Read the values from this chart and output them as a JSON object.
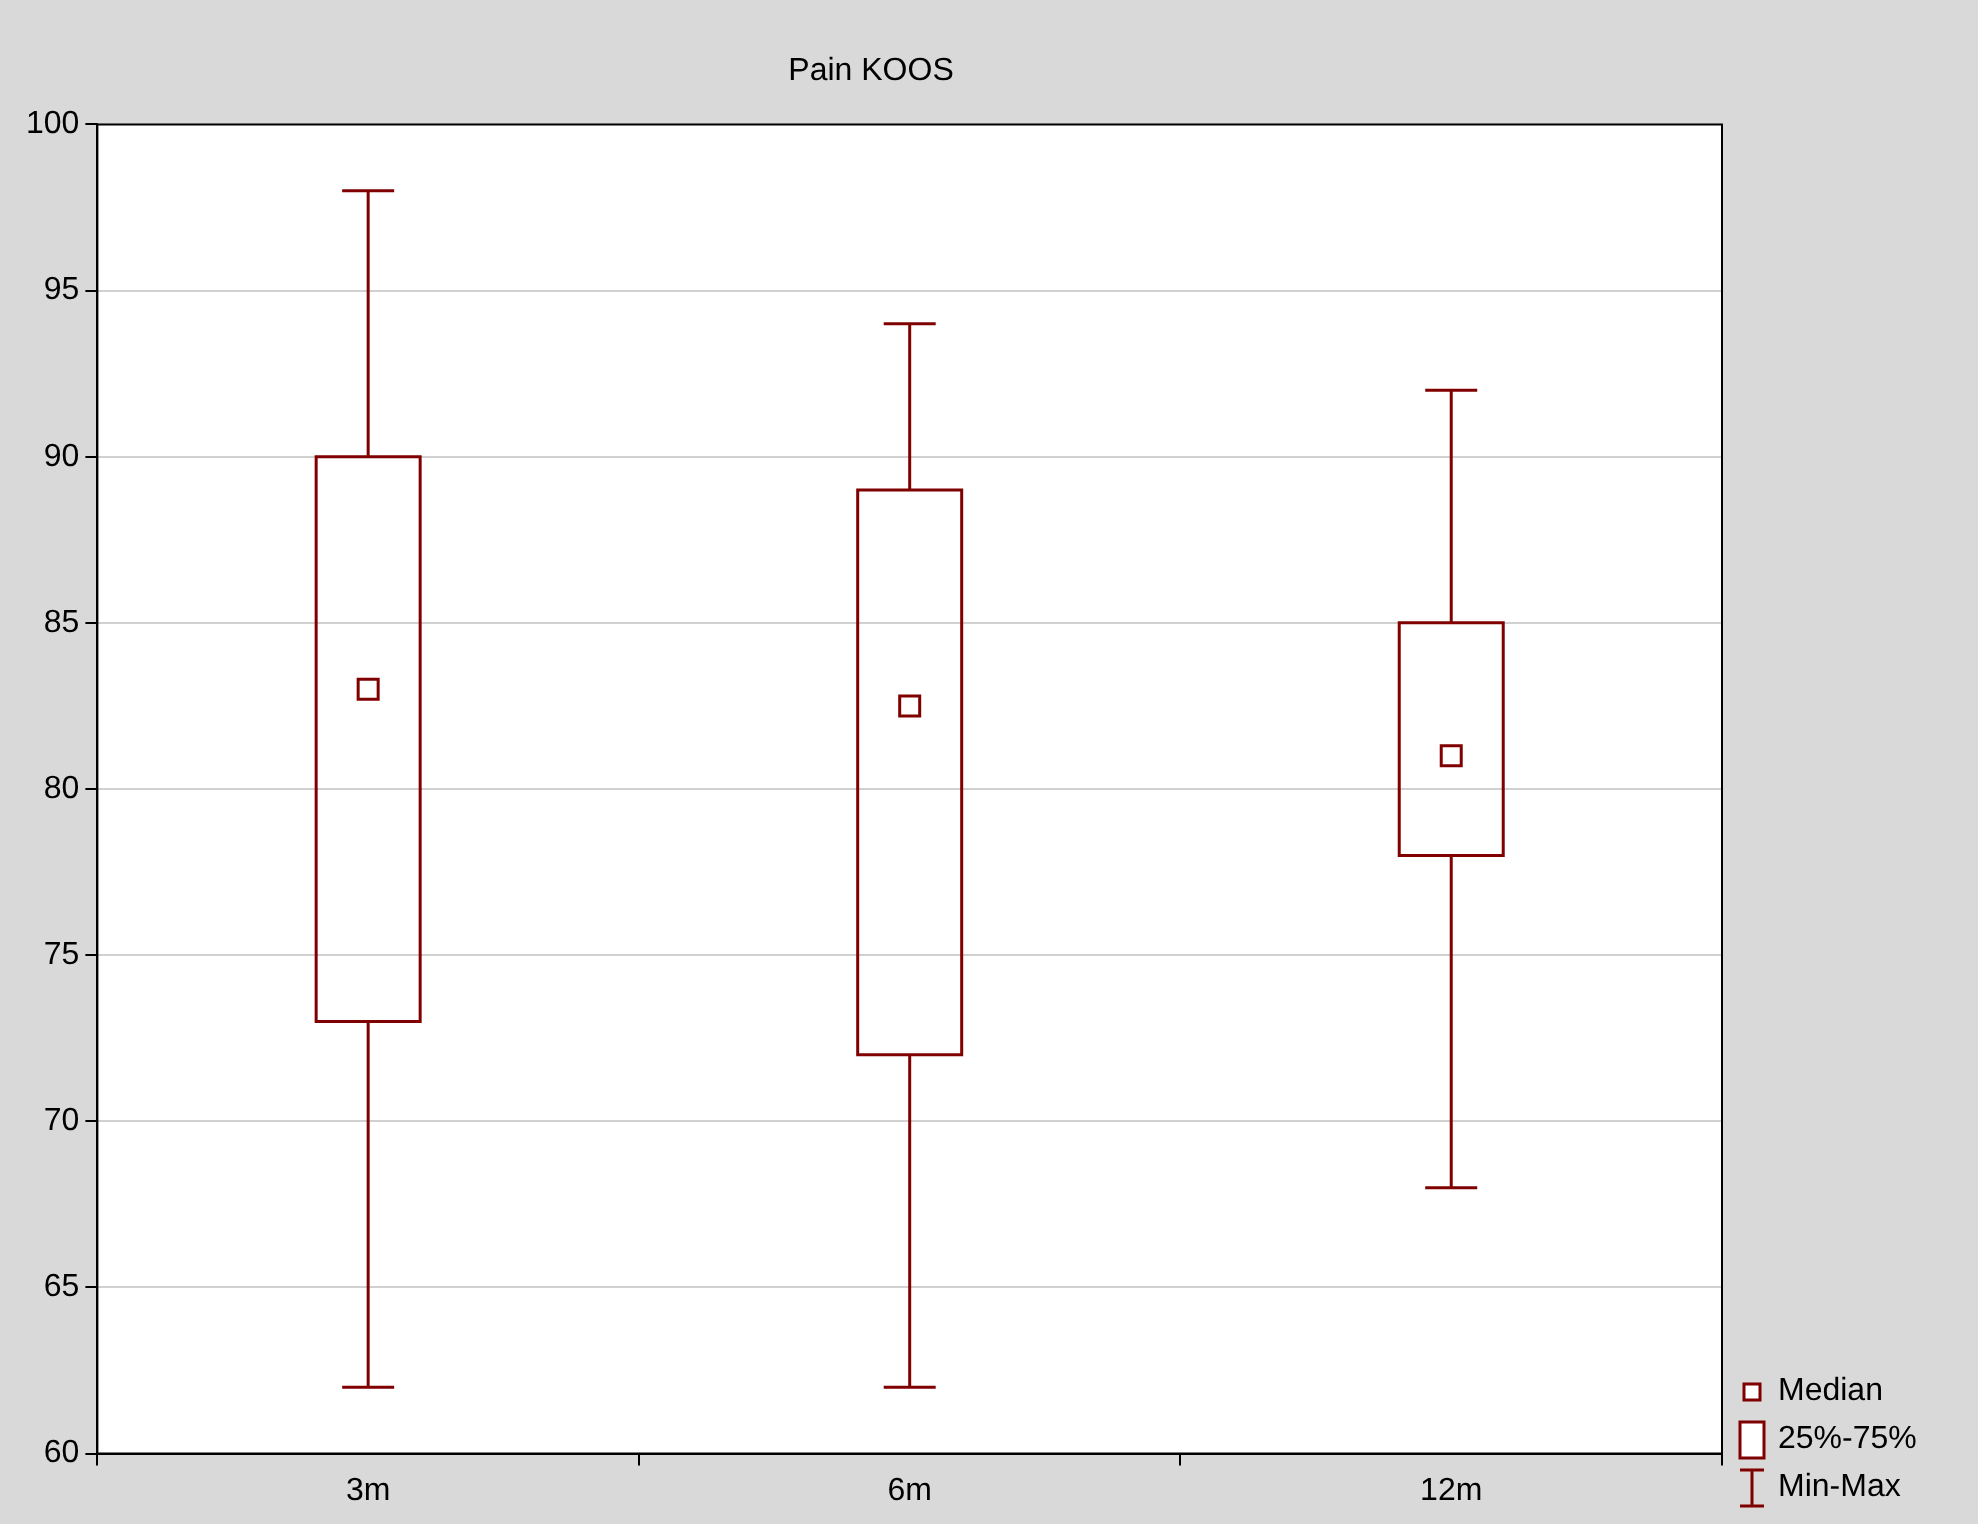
{
  "chart_data": {
    "type": "box",
    "title": "Pain KOOS",
    "categories": [
      "3m",
      "6m",
      "12m"
    ],
    "color": "#800000",
    "boxes": [
      {
        "low": 62,
        "q1": 73,
        "median": 83,
        "q3": 90,
        "high": 98
      },
      {
        "low": 62,
        "q1": 72,
        "median": 82.5,
        "q3": 89,
        "high": 94
      },
      {
        "low": 68,
        "q1": 78,
        "median": 81,
        "q3": 85,
        "high": 92
      }
    ],
    "ylim": [
      60,
      100
    ],
    "yticks": [
      60,
      65,
      70,
      75,
      80,
      85,
      90,
      95,
      100
    ],
    "grid": "y",
    "annotations": [
      "Median",
      "25%-75%",
      "Min-Max"
    ]
  }
}
